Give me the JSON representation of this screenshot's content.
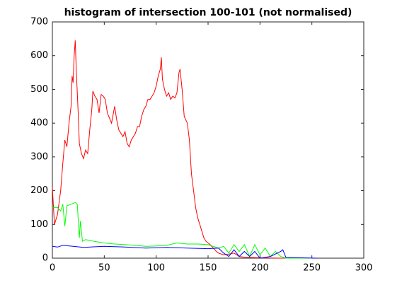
{
  "chart_data": {
    "type": "line",
    "title": "histogram of intersection 100-101 (not normalised)",
    "xlim": [
      0,
      300
    ],
    "xticks": [
      0,
      50,
      100,
      150,
      200,
      250,
      300
    ],
    "ylim": [
      0,
      700
    ],
    "yticks": [
      0,
      100,
      200,
      300,
      400,
      500,
      600,
      700
    ],
    "grid": false,
    "series": [
      {
        "color": "#ff0000",
        "x": [
          0,
          2,
          5,
          8,
          10,
          12,
          14,
          16,
          18,
          19,
          20,
          21,
          22,
          23,
          25,
          26,
          28,
          30,
          32,
          34,
          36,
          38,
          39,
          41,
          43,
          45,
          47,
          49,
          51,
          53,
          55,
          57,
          60,
          62,
          64,
          66,
          68,
          70,
          72,
          74,
          76,
          78,
          80,
          82,
          84,
          86,
          88,
          90,
          92,
          94,
          96,
          98,
          100,
          102,
          104,
          105,
          106,
          108,
          110,
          112,
          114,
          116,
          118,
          120,
          122,
          123,
          125,
          127,
          130,
          132,
          134,
          136,
          138,
          140,
          142,
          144,
          146,
          148,
          150,
          152,
          155,
          158,
          160,
          165,
          170,
          175,
          180,
          185,
          190,
          200,
          220,
          250
        ],
        "values": [
          210,
          100,
          130,
          200,
          280,
          350,
          330,
          400,
          450,
          540,
          520,
          600,
          645,
          560,
          420,
          340,
          310,
          295,
          320,
          310,
          380,
          440,
          495,
          480,
          470,
          430,
          485,
          480,
          470,
          430,
          415,
          400,
          450,
          410,
          380,
          370,
          360,
          375,
          340,
          330,
          350,
          360,
          370,
          390,
          390,
          420,
          440,
          450,
          470,
          470,
          480,
          490,
          510,
          540,
          560,
          595,
          530,
          500,
          480,
          490,
          470,
          480,
          475,
          490,
          550,
          560,
          500,
          420,
          400,
          350,
          250,
          200,
          150,
          120,
          100,
          80,
          60,
          50,
          45,
          40,
          30,
          20,
          15,
          10,
          12,
          15,
          5,
          3,
          2,
          1,
          0,
          0
        ]
      },
      {
        "color": "#00ff00",
        "x": [
          0,
          5,
          8,
          10,
          12,
          14,
          18,
          22,
          24,
          26,
          27,
          29,
          32,
          40,
          50,
          60,
          70,
          80,
          90,
          100,
          110,
          120,
          130,
          140,
          150,
          160,
          165,
          170,
          175,
          180,
          185,
          190,
          195,
          200,
          205,
          210,
          215,
          220,
          225,
          250
        ],
        "values": [
          150,
          150,
          140,
          160,
          95,
          155,
          160,
          165,
          160,
          60,
          110,
          50,
          55,
          50,
          45,
          42,
          40,
          38,
          35,
          36,
          38,
          45,
          42,
          42,
          40,
          30,
          35,
          15,
          40,
          20,
          40,
          5,
          40,
          10,
          30,
          5,
          20,
          5,
          0,
          0
        ]
      },
      {
        "color": "#0000ff",
        "x": [
          0,
          5,
          10,
          20,
          30,
          50,
          70,
          90,
          110,
          130,
          150,
          160,
          165,
          170,
          175,
          180,
          185,
          190,
          195,
          200,
          210,
          220,
          222,
          225,
          240,
          255
        ],
        "values": [
          35,
          33,
          38,
          35,
          32,
          35,
          33,
          30,
          32,
          30,
          28,
          30,
          15,
          5,
          25,
          5,
          20,
          5,
          20,
          0,
          5,
          20,
          25,
          2,
          1,
          0
        ]
      }
    ]
  }
}
